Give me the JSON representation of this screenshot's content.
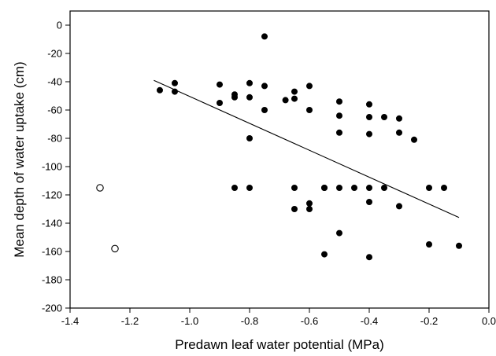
{
  "chart_data": {
    "type": "scatter",
    "title": "",
    "xlabel": "Predawn leaf water potential (MPa)",
    "ylabel": "Mean depth of water uptake (cm)",
    "xlim": [
      -1.4,
      0.0
    ],
    "ylim": [
      -200,
      10
    ],
    "xticks": [
      -1.4,
      -1.2,
      -1.0,
      -0.8,
      -0.6,
      -0.4,
      -0.2,
      0.0
    ],
    "xtick_labels": [
      "-1.4",
      "-1.2",
      "-1.0",
      "-0.8",
      "-0.6",
      "-0.4",
      "-0.2",
      "0.0"
    ],
    "yticks": [
      0,
      -20,
      -40,
      -60,
      -80,
      -100,
      -120,
      -140,
      -160,
      -180,
      -200
    ],
    "ytick_labels": [
      "0",
      "-20",
      "-40",
      "-60",
      "-80",
      "-100",
      "-120",
      "-140",
      "-160",
      "-180",
      "-200"
    ],
    "grid": false,
    "legend": false,
    "series": [
      {
        "marker": "filled-circle",
        "color": "#000000",
        "points": [
          [
            -1.1,
            -46
          ],
          [
            -1.05,
            -41
          ],
          [
            -1.05,
            -47
          ],
          [
            -0.9,
            -42
          ],
          [
            -0.9,
            -55
          ],
          [
            -0.85,
            -49
          ],
          [
            -0.85,
            -51
          ],
          [
            -0.85,
            -115
          ],
          [
            -0.8,
            -41
          ],
          [
            -0.8,
            -51
          ],
          [
            -0.8,
            -80
          ],
          [
            -0.8,
            -115
          ],
          [
            -0.75,
            -8
          ],
          [
            -0.75,
            -43
          ],
          [
            -0.75,
            -60
          ],
          [
            -0.68,
            -53
          ],
          [
            -0.65,
            -47
          ],
          [
            -0.65,
            -52
          ],
          [
            -0.65,
            -115
          ],
          [
            -0.65,
            -130
          ],
          [
            -0.6,
            -43
          ],
          [
            -0.6,
            -60
          ],
          [
            -0.6,
            -126
          ],
          [
            -0.6,
            -130
          ],
          [
            -0.55,
            -115
          ],
          [
            -0.55,
            -115
          ],
          [
            -0.55,
            -162
          ],
          [
            -0.5,
            -54
          ],
          [
            -0.5,
            -64
          ],
          [
            -0.5,
            -76
          ],
          [
            -0.5,
            -115
          ],
          [
            -0.5,
            -147
          ],
          [
            -0.45,
            -115
          ],
          [
            -0.4,
            -56
          ],
          [
            -0.4,
            -65
          ],
          [
            -0.4,
            -77
          ],
          [
            -0.4,
            -115
          ],
          [
            -0.4,
            -125
          ],
          [
            -0.4,
            -164
          ],
          [
            -0.35,
            -65
          ],
          [
            -0.35,
            -115
          ],
          [
            -0.3,
            -66
          ],
          [
            -0.3,
            -76
          ],
          [
            -0.3,
            -128
          ],
          [
            -0.25,
            -81
          ],
          [
            -0.2,
            -115
          ],
          [
            -0.2,
            -155
          ],
          [
            -0.15,
            -115
          ],
          [
            -0.1,
            -156
          ]
        ]
      },
      {
        "marker": "open-circle",
        "color": "#000000",
        "points": [
          [
            -1.3,
            -115
          ],
          [
            -1.25,
            -158
          ]
        ]
      }
    ],
    "regression_line": {
      "x": [
        -1.12,
        -0.1
      ],
      "y": [
        -39,
        -136
      ]
    }
  }
}
